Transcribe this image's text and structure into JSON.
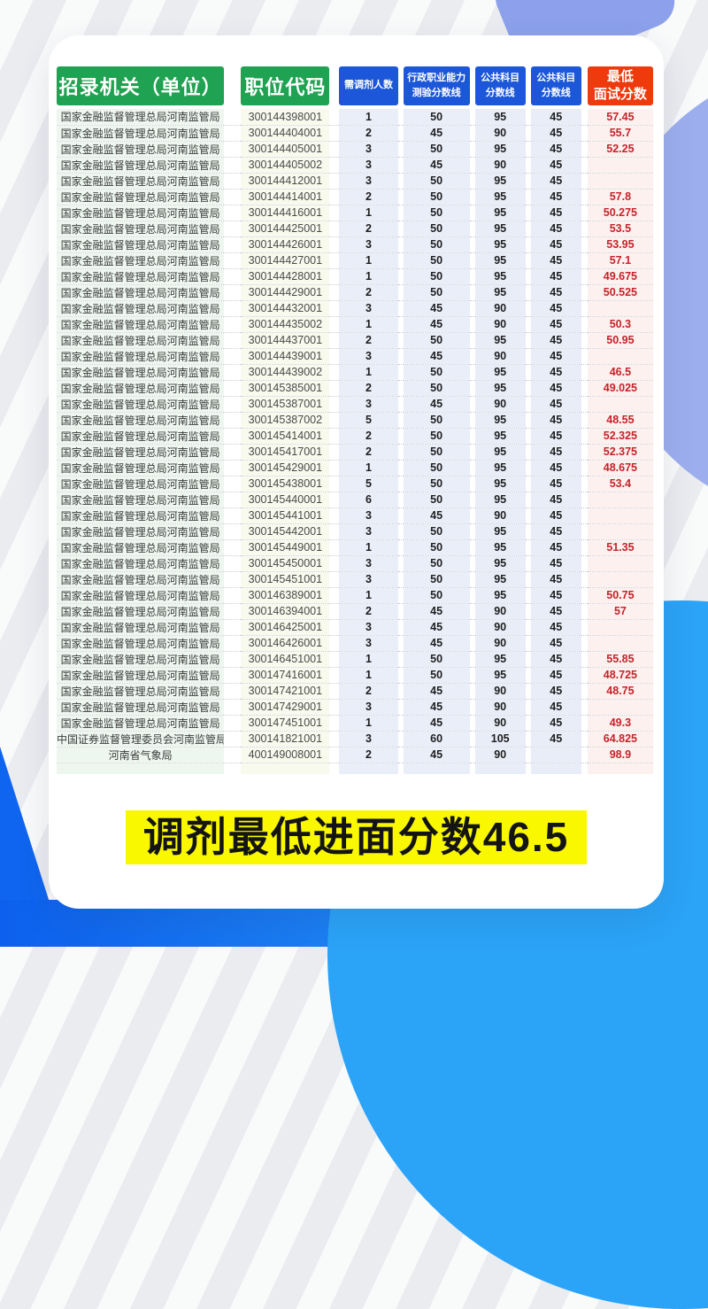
{
  "page": {
    "banner": "调剂最低进面分数46.5"
  },
  "colors": {
    "header_green": "#1FA251",
    "header_blue": "#1B57D8",
    "header_red": "#EE3A0D",
    "score_red": "#C5232B",
    "banner_yellow": "#F9F800",
    "deep_blue": "#0F65EF",
    "sky_blue": "#2BA3F7",
    "periwinkle": "#8CA0EB"
  },
  "table": {
    "headers": [
      {
        "lines": [
          "招录机关（单位）"
        ],
        "style": "green"
      },
      {
        "lines": [
          "职位代码"
        ],
        "style": "green"
      },
      {
        "lines": [
          "需调剂人数"
        ],
        "style": "blue"
      },
      {
        "lines": [
          "行政职业能力",
          "测验分数线"
        ],
        "style": "blue"
      },
      {
        "lines": [
          "公共科目",
          "分数线"
        ],
        "style": "blue"
      },
      {
        "lines": [
          "公共科目",
          "分数线"
        ],
        "style": "blue"
      },
      {
        "lines": [
          "最低",
          "面试分数"
        ],
        "style": "red"
      }
    ],
    "column_semantics": [
      "cell-agency",
      "cell-position-code",
      "cell-need-count",
      "cell-xingce-cutoff",
      "cell-public-subject-cutoff-1",
      "cell-public-subject-cutoff-2",
      "cell-min-interview-score"
    ],
    "rows": [
      [
        "国家金融监督管理总局河南监管局",
        "300144398001",
        "1",
        "50",
        "95",
        "45",
        "57.45"
      ],
      [
        "国家金融监督管理总局河南监管局",
        "300144404001",
        "2",
        "45",
        "90",
        "45",
        "55.7"
      ],
      [
        "国家金融监督管理总局河南监管局",
        "300144405001",
        "3",
        "50",
        "95",
        "45",
        "52.25"
      ],
      [
        "国家金融监督管理总局河南监管局",
        "300144405002",
        "3",
        "45",
        "90",
        "45",
        ""
      ],
      [
        "国家金融监督管理总局河南监管局",
        "300144412001",
        "3",
        "50",
        "95",
        "45",
        ""
      ],
      [
        "国家金融监督管理总局河南监管局",
        "300144414001",
        "2",
        "50",
        "95",
        "45",
        "57.8"
      ],
      [
        "国家金融监督管理总局河南监管局",
        "300144416001",
        "1",
        "50",
        "95",
        "45",
        "50.275"
      ],
      [
        "国家金融监督管理总局河南监管局",
        "300144425001",
        "2",
        "50",
        "95",
        "45",
        "53.5"
      ],
      [
        "国家金融监督管理总局河南监管局",
        "300144426001",
        "3",
        "50",
        "95",
        "45",
        "53.95"
      ],
      [
        "国家金融监督管理总局河南监管局",
        "300144427001",
        "1",
        "50",
        "95",
        "45",
        "57.1"
      ],
      [
        "国家金融监督管理总局河南监管局",
        "300144428001",
        "1",
        "50",
        "95",
        "45",
        "49.675"
      ],
      [
        "国家金融监督管理总局河南监管局",
        "300144429001",
        "2",
        "50",
        "95",
        "45",
        "50.525"
      ],
      [
        "国家金融监督管理总局河南监管局",
        "300144432001",
        "3",
        "45",
        "90",
        "45",
        ""
      ],
      [
        "国家金融监督管理总局河南监管局",
        "300144435002",
        "1",
        "45",
        "90",
        "45",
        "50.3"
      ],
      [
        "国家金融监督管理总局河南监管局",
        "300144437001",
        "2",
        "50",
        "95",
        "45",
        "50.95"
      ],
      [
        "国家金融监督管理总局河南监管局",
        "300144439001",
        "3",
        "45",
        "90",
        "45",
        ""
      ],
      [
        "国家金融监督管理总局河南监管局",
        "300144439002",
        "1",
        "50",
        "95",
        "45",
        "46.5"
      ],
      [
        "国家金融监督管理总局河南监管局",
        "300145385001",
        "2",
        "50",
        "95",
        "45",
        "49.025"
      ],
      [
        "国家金融监督管理总局河南监管局",
        "300145387001",
        "3",
        "45",
        "90",
        "45",
        ""
      ],
      [
        "国家金融监督管理总局河南监管局",
        "300145387002",
        "5",
        "50",
        "95",
        "45",
        "48.55"
      ],
      [
        "国家金融监督管理总局河南监管局",
        "300145414001",
        "2",
        "50",
        "95",
        "45",
        "52.325"
      ],
      [
        "国家金融监督管理总局河南监管局",
        "300145417001",
        "2",
        "50",
        "95",
        "45",
        "52.375"
      ],
      [
        "国家金融监督管理总局河南监管局",
        "300145429001",
        "1",
        "50",
        "95",
        "45",
        "48.675"
      ],
      [
        "国家金融监督管理总局河南监管局",
        "300145438001",
        "5",
        "50",
        "95",
        "45",
        "53.4"
      ],
      [
        "国家金融监督管理总局河南监管局",
        "300145440001",
        "6",
        "50",
        "95",
        "45",
        ""
      ],
      [
        "国家金融监督管理总局河南监管局",
        "300145441001",
        "3",
        "45",
        "90",
        "45",
        ""
      ],
      [
        "国家金融监督管理总局河南监管局",
        "300145442001",
        "3",
        "50",
        "95",
        "45",
        ""
      ],
      [
        "国家金融监督管理总局河南监管局",
        "300145449001",
        "1",
        "50",
        "95",
        "45",
        "51.35"
      ],
      [
        "国家金融监督管理总局河南监管局",
        "300145450001",
        "3",
        "50",
        "95",
        "45",
        ""
      ],
      [
        "国家金融监督管理总局河南监管局",
        "300145451001",
        "3",
        "50",
        "95",
        "45",
        ""
      ],
      [
        "国家金融监督管理总局河南监管局",
        "300146389001",
        "1",
        "50",
        "95",
        "45",
        "50.75"
      ],
      [
        "国家金融监督管理总局河南监管局",
        "300146394001",
        "2",
        "45",
        "90",
        "45",
        "57"
      ],
      [
        "国家金融监督管理总局河南监管局",
        "300146425001",
        "3",
        "45",
        "90",
        "45",
        ""
      ],
      [
        "国家金融监督管理总局河南监管局",
        "300146426001",
        "3",
        "45",
        "90",
        "45",
        ""
      ],
      [
        "国家金融监督管理总局河南监管局",
        "300146451001",
        "1",
        "50",
        "95",
        "45",
        "55.85"
      ],
      [
        "国家金融监督管理总局河南监管局",
        "300147416001",
        "1",
        "50",
        "95",
        "45",
        "48.725"
      ],
      [
        "国家金融监督管理总局河南监管局",
        "300147421001",
        "2",
        "45",
        "90",
        "45",
        "48.75"
      ],
      [
        "国家金融监督管理总局河南监管局",
        "300147429001",
        "3",
        "45",
        "90",
        "45",
        ""
      ],
      [
        "国家金融监督管理总局河南监管局",
        "300147451001",
        "1",
        "45",
        "90",
        "45",
        "49.3"
      ],
      [
        "中国证券监督管理委员会河南监管局",
        "300141821001",
        "3",
        "60",
        "105",
        "45",
        "64.825"
      ],
      [
        "河南省气象局",
        "400149008001",
        "2",
        "45",
        "90",
        "",
        "98.9"
      ]
    ]
  }
}
